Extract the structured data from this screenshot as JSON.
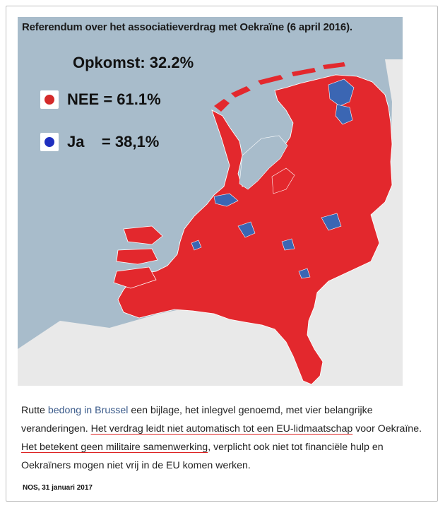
{
  "map": {
    "title": "Referendum over het associatieverdrag met Oekraïne (6 april 2016).",
    "turnout": "Opkomst: 32.2%",
    "legend": [
      {
        "label": "NEE = 61.1%",
        "color": "#d42a2a"
      },
      {
        "label": "Ja    = 38,1%",
        "color": "#1f2fbf"
      }
    ],
    "colors": {
      "sea": "#a8bccb",
      "land_outside": "#e9e9e9",
      "no": "#e3282d",
      "yes": "#3b66b3",
      "lake": "#a8bccb"
    }
  },
  "caption": {
    "part1": "Rutte ",
    "link": "bedong in Brussel",
    "part2": " een bijlage, het inlegvel genoemd, met vier belangrijke veranderingen. ",
    "underline1": "Het verdrag leidt niet automatisch tot een EU-lidmaatschap",
    "part3": " voor Oekraïne. ",
    "underline2": "Het betekent geen militaire samenwerking",
    "part4": ", verplicht ook niet tot financiële hulp en Oekraïners mogen niet vrij in de EU komen werken."
  },
  "source": "NOS, 31 januari 2017"
}
